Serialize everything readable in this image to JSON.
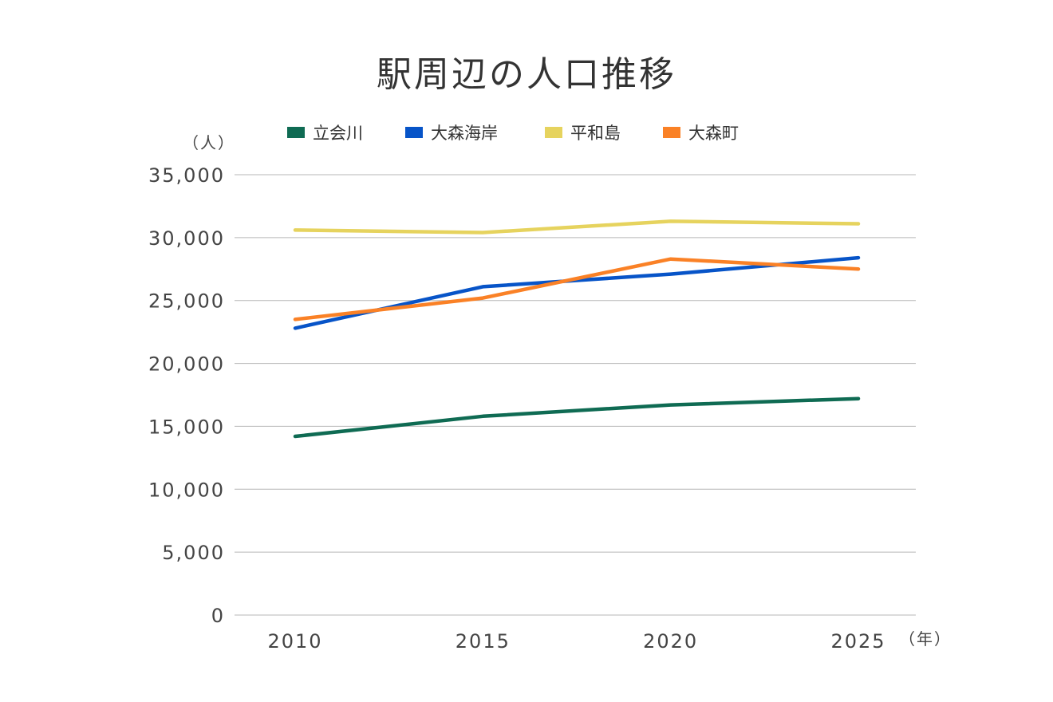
{
  "chart_data": {
    "type": "line",
    "title": "駅周辺の人口推移",
    "y_unit": "（人）",
    "x_unit": "（年）",
    "x": [
      "2010",
      "2015",
      "2020",
      "2025"
    ],
    "ylim": [
      0,
      35000
    ],
    "y_ticks": [
      "0",
      "5,000",
      "10,000",
      "15,000",
      "20,000",
      "25,000",
      "30,000",
      "35,000"
    ],
    "grid": true,
    "legend_position": "top",
    "series": [
      {
        "name": "立会川",
        "color": "#0f6b53",
        "values": [
          14200,
          15800,
          16700,
          17200
        ]
      },
      {
        "name": "大森海岸",
        "color": "#0754c8",
        "values": [
          22800,
          26100,
          27100,
          28400
        ]
      },
      {
        "name": "平和島",
        "color": "#e6d35e",
        "values": [
          30600,
          30400,
          31300,
          31100
        ]
      },
      {
        "name": "大森町",
        "color": "#fa8126",
        "values": [
          23500,
          25200,
          28300,
          27500
        ]
      }
    ]
  }
}
